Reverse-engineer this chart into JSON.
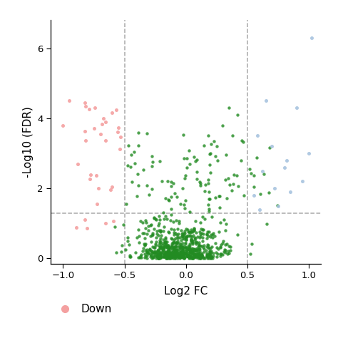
{
  "xlim": [
    -1.1,
    1.1
  ],
  "ylim": [
    -0.15,
    6.8
  ],
  "xticks": [
    -1.0,
    -0.5,
    0.0,
    0.5,
    1.0
  ],
  "yticks": [
    0,
    2,
    4,
    6
  ],
  "xlabel": "Log2 FC",
  "ylabel": "-Log10 (FDR)",
  "vline1": -0.5,
  "vline2": 0.5,
  "hline": 1.3,
  "color_down": "#F4A0A0",
  "color_up": "#A8C4DF",
  "color_ns": "#228B22",
  "dashed_color": "#AAAAAA",
  "legend_down": "Down",
  "seed": 12345
}
